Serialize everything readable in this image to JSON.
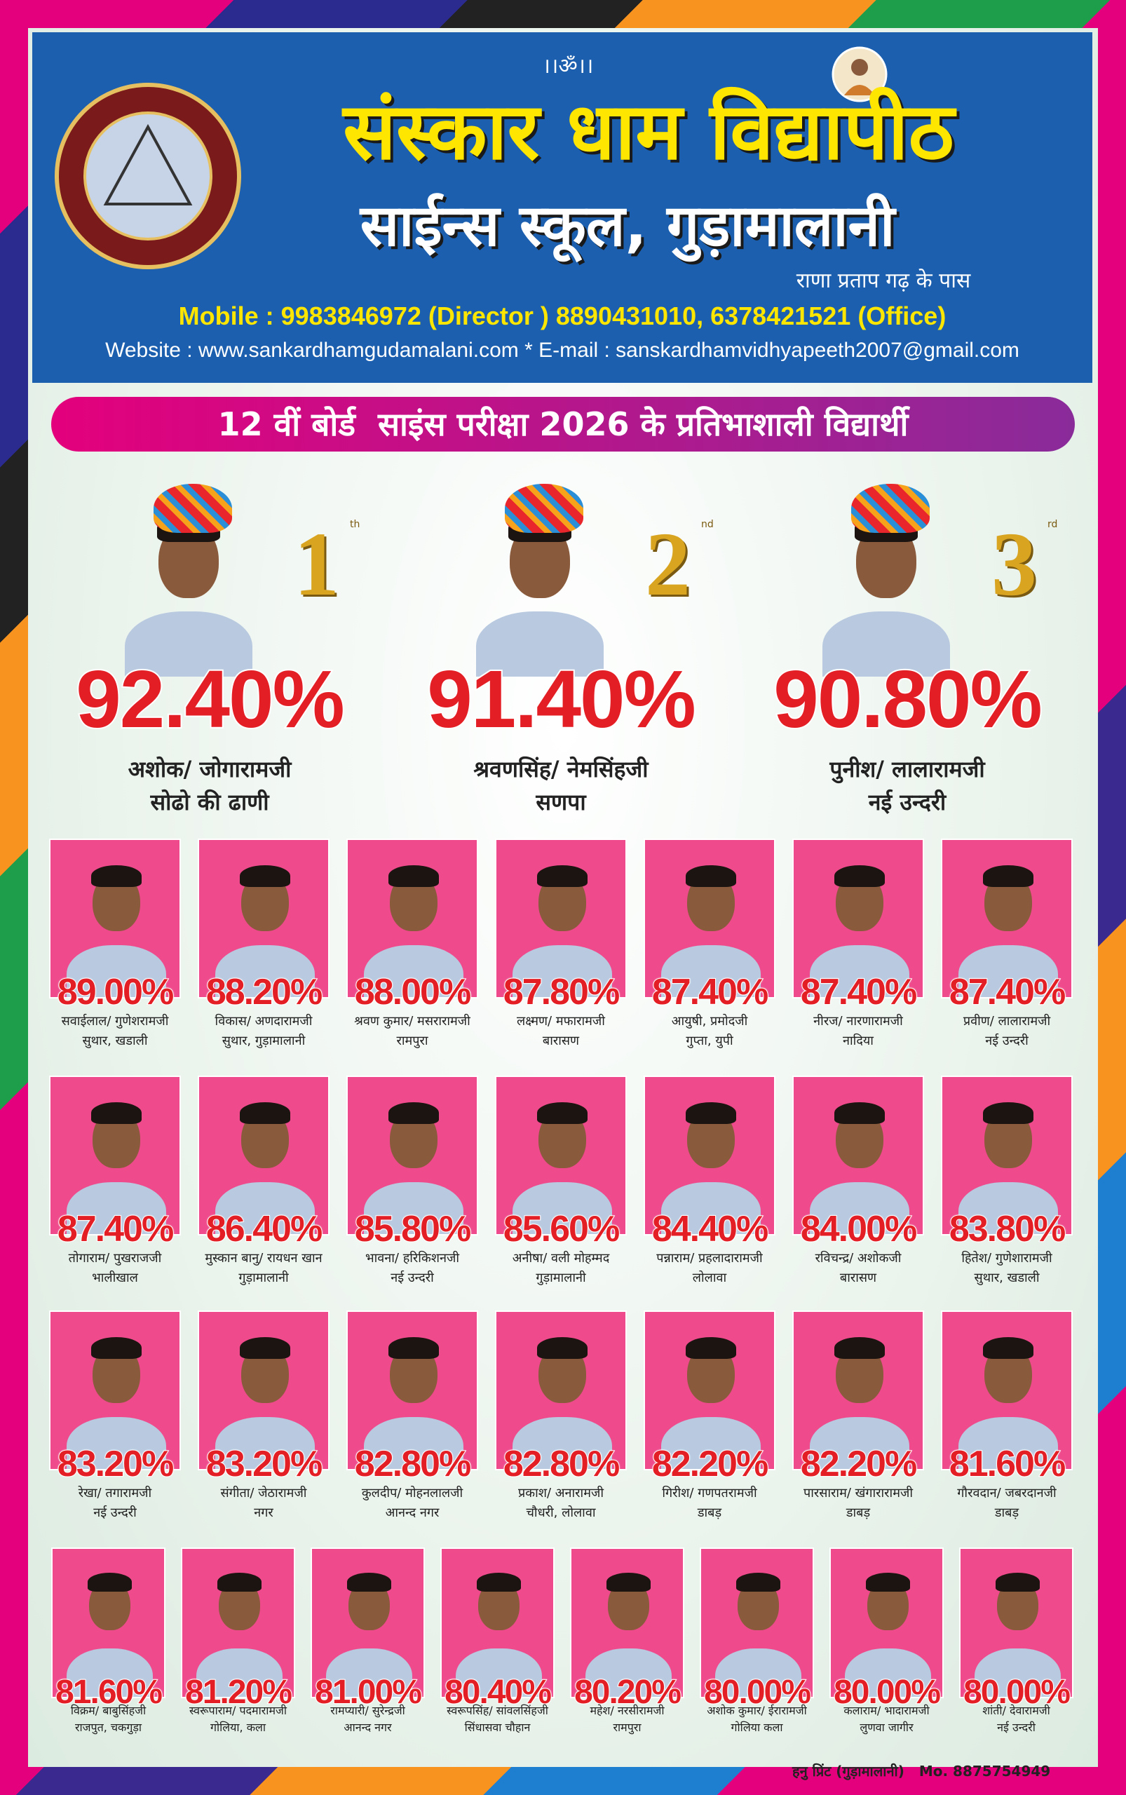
{
  "header": {
    "om": "।।ॐ।।",
    "title": "संस्कार धाम विद्यापीठ",
    "subtitle": "साईन्स स्कूल, गुड़ामालानी",
    "location": "राणा प्रताप गढ़ के पास",
    "mobile": "Mobile : 9983846972 (Director ) 8890431010, 6378421521 (Office)",
    "website": "Website : www.sankardhamgudamalani.com * E-mail : sanskardhamvidhyapeeth2007@gmail.com"
  },
  "banner": "12 वीं बोर्ड  साइंस परीक्षा 2026 के प्रतिभाशाली विद्यार्थी",
  "toppers": [
    {
      "rank": "1",
      "suffix": "th",
      "percent": "92.40%",
      "name": "अशोक/ जोगारामजी",
      "place": "सोढो की ढाणी"
    },
    {
      "rank": "2",
      "suffix": "nd",
      "percent": "91.40%",
      "name": "श्रवणसिंह/ नेमसिंहजी",
      "place": "सणपा"
    },
    {
      "rank": "3",
      "suffix": "rd",
      "percent": "90.80%",
      "name": "पुनीश/ लालारामजी",
      "place": "नई उन्दरी"
    }
  ],
  "rows": [
    [
      {
        "percent": "89.00%",
        "name": "सवाईलाल/ गुणेशरामजी",
        "place": "सुथार, खडाली"
      },
      {
        "percent": "88.20%",
        "name": "विकास/ अणदारामजी",
        "place": "सुथार, गुड़ामालानी"
      },
      {
        "percent": "88.00%",
        "name": "श्रवण कुमार/ मसरारामजी",
        "place": "रामपुरा"
      },
      {
        "percent": "87.80%",
        "name": "लक्ष्मण/ मफारामजी",
        "place": "बारासण"
      },
      {
        "percent": "87.40%",
        "name": "आयुषी, प्रमोदजी",
        "place": "गुप्ता, युपी"
      },
      {
        "percent": "87.40%",
        "name": "नीरज/ नारणारामजी",
        "place": "नादिया"
      },
      {
        "percent": "87.40%",
        "name": "प्रवीण/ लालारामजी",
        "place": "नई उन्दरी"
      }
    ],
    [
      {
        "percent": "87.40%",
        "name": "तोगाराम/ पुखराजजी",
        "place": "भालीखाल"
      },
      {
        "percent": "86.40%",
        "name": "मुस्कान बानु/ रायधन खान",
        "place": "गुड़ामालानी"
      },
      {
        "percent": "85.80%",
        "name": "भावना/ हरिकिशनजी",
        "place": "नई उन्दरी"
      },
      {
        "percent": "85.60%",
        "name": "अनीषा/ वली मोहम्मद",
        "place": "गुड़ामालानी"
      },
      {
        "percent": "84.40%",
        "name": "पन्नाराम/ प्रहलादारामजी",
        "place": "लोलावा"
      },
      {
        "percent": "84.00%",
        "name": "रविचन्द्र/ अशोकजी",
        "place": "बारासण"
      },
      {
        "percent": "83.80%",
        "name": "हितेश/ गुणेशारामजी",
        "place": "सुथार, खडाली"
      }
    ],
    [
      {
        "percent": "83.20%",
        "name": "रेखा/ तगारामजी",
        "place": "नई उन्दरी"
      },
      {
        "percent": "83.20%",
        "name": "संगीता/ जेठारामजी",
        "place": "नगर"
      },
      {
        "percent": "82.80%",
        "name": "कुलदीप/ मोहनलालजी",
        "place": "आनन्द नगर"
      },
      {
        "percent": "82.80%",
        "name": "प्रकाश/ अनारामजी",
        "place": "चौधरी, लोलावा"
      },
      {
        "percent": "82.20%",
        "name": "गिरीश/ गणपतरामजी",
        "place": "डाबड़"
      },
      {
        "percent": "82.20%",
        "name": "पारसाराम/ खंगारारामजी",
        "place": "डाबड़"
      },
      {
        "percent": "81.60%",
        "name": "गौरवदान/ जबरदानजी",
        "place": "डाबड़"
      }
    ],
    [
      {
        "percent": "81.60%",
        "name": "विक्रम/ बाबुसिंहजी",
        "place": "राजपुत, चकगुड़ा"
      },
      {
        "percent": "81.20%",
        "name": "स्वरूपाराम/ पदमारामजी",
        "place": "गोलिया, कला"
      },
      {
        "percent": "81.00%",
        "name": "रामप्यारी/ सुरेन्द्रजी",
        "place": "आनन्द नगर"
      },
      {
        "percent": "80.40%",
        "name": "स्वरूपसिंह/ सांवलसिंहजी",
        "place": "सिंधासवा चौहान"
      },
      {
        "percent": "80.20%",
        "name": "महेश/ नरसीरामजी",
        "place": "रामपुरा"
      },
      {
        "percent": "80.00%",
        "name": "अशोक कुमार/ ईरारामजी",
        "place": "गोलिया कला"
      },
      {
        "percent": "80.00%",
        "name": "कलाराम/ भादारामजी",
        "place": "लुणवा जागीर"
      },
      {
        "percent": "80.00%",
        "name": "शांती/ देवारामजी",
        "place": "नई उन्दरी"
      }
    ]
  ],
  "footer": {
    "printer": "हनु प्रिंट (गुड़ामालानी)",
    "phone": "Mo. 8875754949"
  }
}
